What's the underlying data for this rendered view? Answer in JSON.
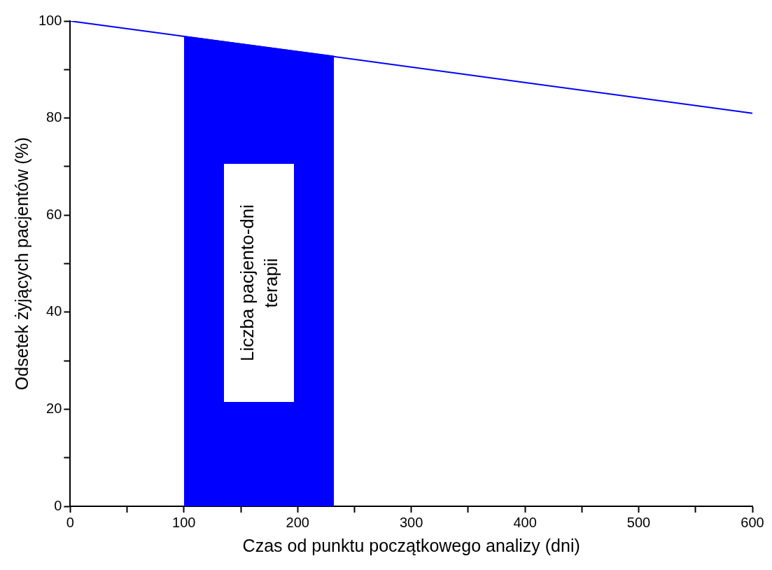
{
  "chart_data": {
    "type": "line",
    "xlabel": "Czas od punktu początkowego analizy (dni)",
    "ylabel": "Odsetek żyjących pacjentów (%)",
    "x": [
      0,
      600
    ],
    "series": [
      {
        "color": "#0000ff",
        "values": [
          100,
          81
        ]
      },
      {
        "type": "area",
        "color": "#0000ff",
        "x": [
          100,
          232
        ],
        "values": [
          96.8,
          92.7
        ]
      }
    ],
    "annotations": [
      "Liczba pacjento-dni terapii"
    ],
    "xlim": [
      0,
      600
    ],
    "ylim": [
      0,
      100
    ],
    "xticks": [
      0,
      {
        "value": 50,
        "label": null
      },
      100,
      {
        "value": 150,
        "label": null
      },
      200,
      {
        "value": 250,
        "label": null
      },
      300,
      {
        "value": 350,
        "label": null
      },
      400,
      {
        "value": 450,
        "label": null
      },
      500,
      {
        "value": 550,
        "label": null
      },
      600
    ],
    "yticks": [
      0,
      {
        "value": 10,
        "label": null
      },
      20,
      {
        "value": 30,
        "label": null
      },
      40,
      {
        "value": 50,
        "label": null
      },
      60,
      {
        "value": 70,
        "label": null
      },
      80,
      {
        "value": 90,
        "label": null
      },
      100
    ],
    "grid": false,
    "legend": false,
    "marker": "none",
    "line_style": "solid"
  }
}
